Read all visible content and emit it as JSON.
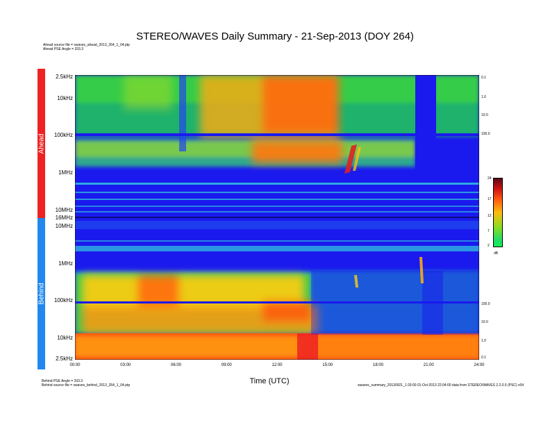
{
  "title": "STEREO/WAVES Daily Summary - 21-Sep-2013 (DOY 264)",
  "header_notes": {
    "ahead_source": "Ahead source file = swaves_ahead_2013_264_1_04.ptp",
    "ahead_pse": "Ahead PSE Angle = 333.3"
  },
  "footer_notes": {
    "behind_pse": "Behind PSE Angle = 333.3",
    "behind_source": "Behind source file = swaves_behind_2013_264_1_04.ptp",
    "generated": "swaves_summary_20130921_1 03:00 01-Oct-2013 22:04:00 data from STEREO/WAVES 2.2.0.0 (PSC) v04"
  },
  "colors": {
    "ahead_bar": "#ee2222",
    "behind_bar": "#2288ee",
    "background": "#1a1aee"
  },
  "chart_data": {
    "type": "heatmap",
    "title": "STEREO/WAVES Daily Summary - 21-Sep-2013 (DOY 264)",
    "xlabel": "Time (UTC)",
    "x_range_hours": [
      0,
      24
    ],
    "x_ticks": [
      "00:00",
      "03:00",
      "06:00",
      "09:00",
      "12:00",
      "15:00",
      "18:00",
      "21:00",
      "24:00"
    ],
    "panels": [
      {
        "name": "Ahead",
        "y_ticks": [
          "2.5kHz",
          "10kHz",
          "100kHz",
          "1MHz",
          "10MHz",
          "16MHz"
        ],
        "right_ticks": [
          "0.1",
          "1.0",
          "10.0",
          "100.0"
        ]
      },
      {
        "name": "Behind",
        "y_ticks": [
          "10MHz",
          "1MHz",
          "100kHz",
          "10kHz",
          "2.5kHz"
        ],
        "right_ticks": [
          "100.0",
          "10.0",
          "1.0",
          "0.1"
        ]
      }
    ],
    "colorbar": {
      "ticks": [
        "24",
        "17",
        "12",
        "7",
        "2"
      ],
      "unit": "dB",
      "range": [
        2,
        24
      ]
    }
  }
}
